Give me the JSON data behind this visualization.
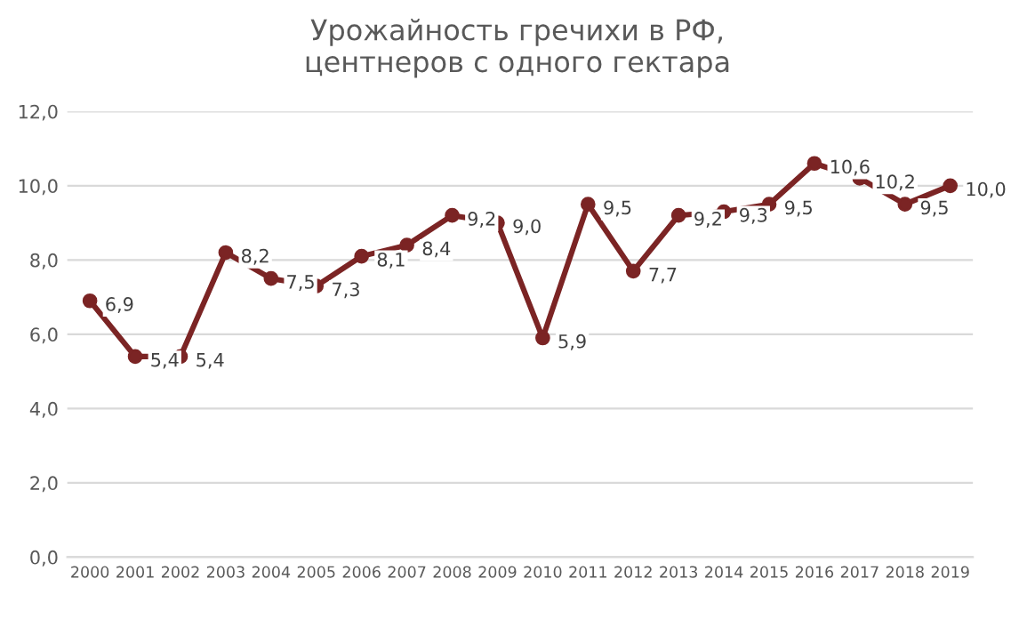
{
  "chart_data": {
    "type": "line",
    "title": "Урожайность гречихи в РФ,\nцентнеров с одного гектара",
    "categories": [
      "2000",
      "2001",
      "2002",
      "2003",
      "2004",
      "2005",
      "2006",
      "2007",
      "2008",
      "2009",
      "2010",
      "2011",
      "2012",
      "2013",
      "2014",
      "2015",
      "2016",
      "2017",
      "2018",
      "2019"
    ],
    "series": [
      {
        "color": "#7b2424",
        "values": [
          6.9,
          5.4,
          5.4,
          8.2,
          7.5,
          7.3,
          8.1,
          8.4,
          9.2,
          9.0,
          5.9,
          9.5,
          7.7,
          9.2,
          9.3,
          9.5,
          10.6,
          10.2,
          9.5,
          10.0
        ],
        "value_labels": [
          "6,9",
          "5,4",
          "5,4",
          "8,2",
          "7,5",
          "7,3",
          "8,1",
          "8,4",
          "9,2",
          "9,0",
          "5,9",
          "9,5",
          "7,7",
          "9,2",
          "9,3",
          "9,5",
          "10,6",
          "10,2",
          "9,5",
          "10,0"
        ]
      }
    ],
    "ylim": [
      0,
      12
    ],
    "yticks": [
      {
        "value": 0,
        "label": "0,0"
      },
      {
        "value": 2,
        "label": "2,0"
      },
      {
        "value": 4,
        "label": "4,0"
      },
      {
        "value": 6,
        "label": "6,0"
      },
      {
        "value": 8,
        "label": "8,0"
      },
      {
        "value": 10,
        "label": "10,0"
      },
      {
        "value": 12,
        "label": "12,0"
      }
    ],
    "grid": "y",
    "marker": "circle",
    "line_style": "solid",
    "legend": false
  }
}
